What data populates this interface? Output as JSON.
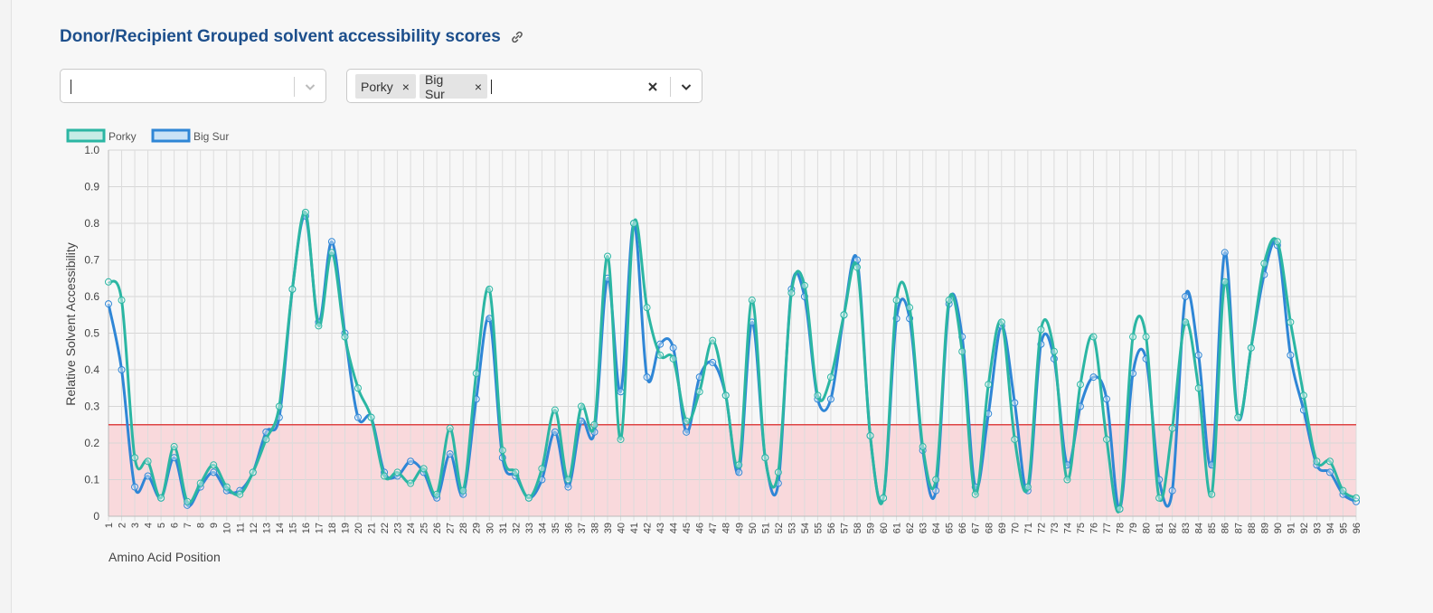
{
  "header": {
    "title": "Donor/Recipient Grouped solvent accessibility scores",
    "link_icon": "link-icon"
  },
  "filters": {
    "first_select": {
      "value": ""
    },
    "second_select": {
      "tags": [
        "Porky",
        "Big Sur"
      ],
      "tag_remove": "×",
      "clear_icon": "close-icon",
      "dropdown_icon": "chevron-down-icon"
    }
  },
  "chart_data": {
    "type": "line",
    "title": "",
    "xlabel": "Amino Acid Position",
    "ylabel": "Relative Solvent Accessibility",
    "ylim": [
      0,
      1.0
    ],
    "yticks": [
      "0",
      "0.1",
      "0.2",
      "0.3",
      "0.4",
      "0.5",
      "0.6",
      "0.7",
      "0.8",
      "0.9",
      "1.0"
    ],
    "grid": true,
    "legend_position": "top-left",
    "threshold": {
      "value": 0.25,
      "color": "#dd4444",
      "fill": "#f9d9dc"
    },
    "x": [
      1,
      2,
      3,
      4,
      5,
      6,
      7,
      8,
      9,
      10,
      11,
      12,
      13,
      14,
      15,
      16,
      17,
      18,
      19,
      20,
      21,
      22,
      23,
      24,
      25,
      26,
      27,
      28,
      29,
      30,
      31,
      32,
      33,
      34,
      35,
      36,
      37,
      38,
      39,
      40,
      41,
      42,
      43,
      44,
      45,
      46,
      47,
      48,
      49,
      50,
      51,
      52,
      53,
      54,
      55,
      56,
      57,
      58,
      59,
      60,
      61,
      62,
      63,
      64,
      65,
      66,
      67,
      68,
      69,
      70,
      71,
      72,
      73,
      74,
      75,
      76,
      77,
      78,
      79,
      80,
      81,
      82,
      83,
      84,
      85,
      86,
      87,
      88,
      89,
      90,
      91,
      92,
      93,
      94,
      95,
      96
    ],
    "series": [
      {
        "name": "Porky",
        "color": "#2bb6a3",
        "values": [
          0.64,
          0.59,
          0.16,
          0.15,
          0.05,
          0.19,
          0.04,
          0.09,
          0.14,
          0.08,
          0.06,
          0.12,
          0.21,
          0.3,
          0.62,
          0.83,
          0.52,
          0.72,
          0.49,
          0.35,
          0.27,
          0.11,
          0.12,
          0.09,
          0.13,
          0.06,
          0.24,
          0.07,
          0.39,
          0.62,
          0.18,
          0.12,
          0.05,
          0.13,
          0.29,
          0.1,
          0.3,
          0.25,
          0.71,
          0.21,
          0.8,
          0.57,
          0.44,
          0.43,
          0.26,
          0.34,
          0.48,
          0.33,
          0.14,
          0.59,
          0.16,
          0.12,
          0.61,
          0.63,
          0.33,
          0.38,
          0.55,
          0.68,
          0.22,
          0.05,
          0.59,
          0.57,
          0.19,
          0.1,
          0.59,
          0.45,
          0.06,
          0.36,
          0.53,
          0.21,
          0.08,
          0.51,
          0.45,
          0.1,
          0.36,
          0.49,
          0.21,
          0.02,
          0.49,
          0.49,
          0.05,
          0.24,
          0.53,
          0.35,
          0.06,
          0.64,
          0.27,
          0.46,
          0.69,
          0.75,
          0.53,
          0.33,
          0.15,
          0.15,
          0.07,
          0.05
        ]
      },
      {
        "name": "Big Sur",
        "color": "#2f86d6",
        "values": [
          0.58,
          0.4,
          0.08,
          0.11,
          0.05,
          0.16,
          0.03,
          0.08,
          0.12,
          0.07,
          0.07,
          0.12,
          0.23,
          0.27,
          0.62,
          0.82,
          0.53,
          0.75,
          0.5,
          0.27,
          0.27,
          0.12,
          0.11,
          0.15,
          0.12,
          0.05,
          0.17,
          0.06,
          0.32,
          0.54,
          0.16,
          0.11,
          0.05,
          0.1,
          0.23,
          0.08,
          0.26,
          0.23,
          0.65,
          0.34,
          0.8,
          0.38,
          0.47,
          0.46,
          0.23,
          0.38,
          0.42,
          0.33,
          0.12,
          0.53,
          0.16,
          0.09,
          0.62,
          0.6,
          0.32,
          0.32,
          0.55,
          0.7,
          0.22,
          0.05,
          0.54,
          0.54,
          0.18,
          0.07,
          0.58,
          0.49,
          0.08,
          0.28,
          0.52,
          0.31,
          0.07,
          0.47,
          0.43,
          0.14,
          0.3,
          0.38,
          0.32,
          0.02,
          0.39,
          0.43,
          0.1,
          0.07,
          0.6,
          0.44,
          0.14,
          0.72,
          0.27,
          0.46,
          0.66,
          0.74,
          0.44,
          0.29,
          0.14,
          0.12,
          0.06,
          0.04
        ]
      }
    ]
  }
}
